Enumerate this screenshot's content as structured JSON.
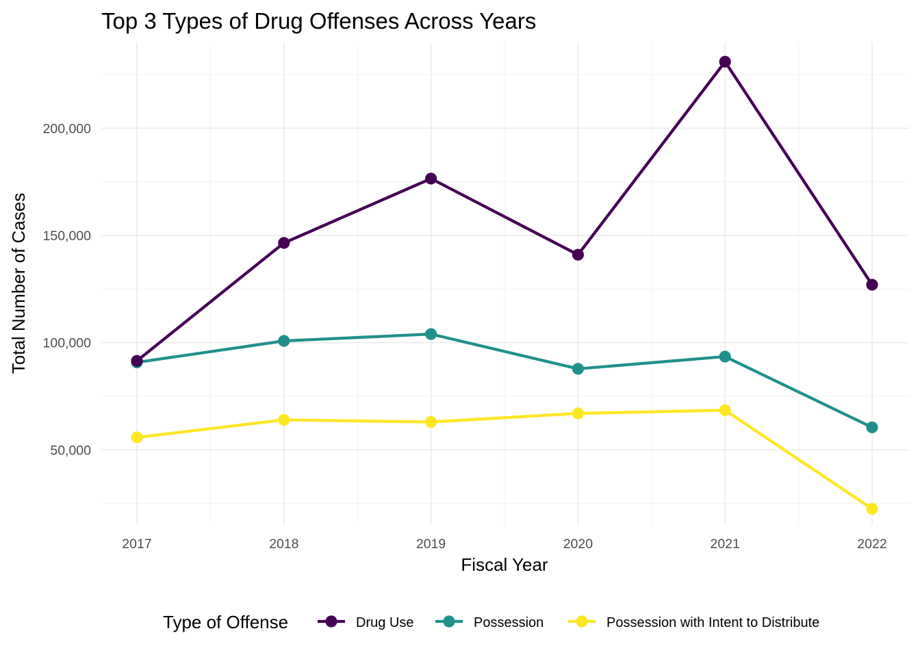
{
  "chart_data": {
    "type": "line",
    "title": "Top 3 Types of Drug Offenses Across Years",
    "xlabel": "Fiscal Year",
    "ylabel": "Total Number of Cases",
    "x": [
      2017,
      2018,
      2019,
      2020,
      2021,
      2022
    ],
    "x_tick_labels": [
      "2017",
      "2018",
      "2019",
      "2020",
      "2021",
      "2022"
    ],
    "ylim": [
      15000,
      240000
    ],
    "y_ticks": [
      50000,
      100000,
      150000,
      200000
    ],
    "y_tick_labels": [
      "50,000",
      "100,000",
      "150,000",
      "200,000"
    ],
    "grid": true,
    "legend": {
      "title": "Type of Offense",
      "position": "bottom"
    },
    "series": [
      {
        "name": "Drug Use",
        "color": "#440154",
        "values": [
          91500,
          146500,
          176500,
          141000,
          231000,
          127000
        ]
      },
      {
        "name": "Possession",
        "color": "#21908C",
        "values": [
          90800,
          100800,
          104000,
          87800,
          93500,
          60500
        ]
      },
      {
        "name": "Possession with Intent to Distribute",
        "color": "#FDE725",
        "values": [
          55800,
          64000,
          63000,
          67000,
          68500,
          22500
        ]
      }
    ]
  }
}
